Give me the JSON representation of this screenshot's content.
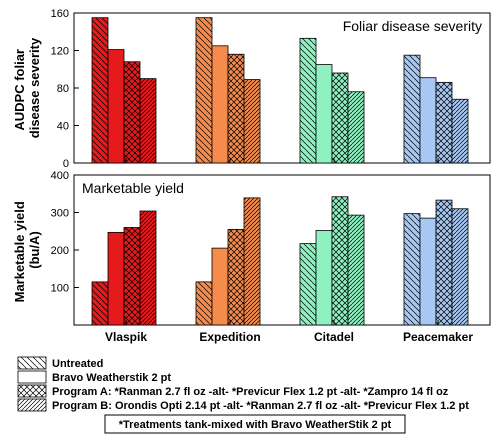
{
  "categories": [
    "Vlaspik",
    "Expedition",
    "Citadel",
    "Peacemaker"
  ],
  "cultivar_colors": [
    "#e41a1c",
    "#f58b4c",
    "#8ff0c0",
    "#a6c8f2"
  ],
  "legend": {
    "entries": [
      {
        "label": "Untreated",
        "pattern": "diag-back"
      },
      {
        "label": "Bravo Weatherstik 2 pt",
        "pattern": "solid"
      },
      {
        "label": "Program A: *Ranman 2.7 fl oz -alt- *Previcur Flex 1.2 pt -alt- *Zampro 14 fl oz",
        "pattern": "crosshatch"
      },
      {
        "label": "Program B: Orondis Opti 2.14 pt -alt- *Ranman 2.7 fl oz -alt- *Previcur Flex 1.2 pt",
        "pattern": "diag-dense"
      }
    ],
    "footnote": "*Treatments tank-mixed with Bravo WeatherStik 2 pt"
  },
  "chart_data": [
    {
      "type": "bar",
      "title": "Foliar disease severity",
      "ylabel": "AUDPC foliar disease severity",
      "ylabel_lines": [
        "AUDPC foliar",
        "disease severity"
      ],
      "ylim": [
        0,
        160
      ],
      "yticks": [
        0,
        40,
        80,
        120,
        160
      ],
      "categories": [
        "Vlaspik",
        "Expedition",
        "Citadel",
        "Peacemaker"
      ],
      "series": [
        {
          "name": "Untreated",
          "values": [
            155,
            155,
            133,
            115
          ]
        },
        {
          "name": "Bravo Weatherstik 2 pt",
          "values": [
            121,
            125,
            105,
            91
          ]
        },
        {
          "name": "Program A",
          "values": [
            108,
            116,
            96,
            86
          ]
        },
        {
          "name": "Program B",
          "values": [
            90,
            89,
            76,
            68
          ]
        }
      ]
    },
    {
      "type": "bar",
      "title": "Marketable yield",
      "ylabel": "Marketable yield (bu/A)",
      "ylabel_lines": [
        "Marketable yield",
        "(bu/A)"
      ],
      "ylim": [
        0,
        400
      ],
      "yticks": [
        100,
        200,
        300,
        400
      ],
      "categories": [
        "Vlaspik",
        "Expedition",
        "Citadel",
        "Peacemaker"
      ],
      "series": [
        {
          "name": "Untreated",
          "values": [
            115,
            115,
            217,
            297
          ]
        },
        {
          "name": "Bravo Weatherstik 2 pt",
          "values": [
            247,
            205,
            252,
            285
          ]
        },
        {
          "name": "Program A",
          "values": [
            260,
            255,
            342,
            333
          ]
        },
        {
          "name": "Program B",
          "values": [
            304,
            339,
            293,
            310
          ]
        }
      ]
    }
  ]
}
